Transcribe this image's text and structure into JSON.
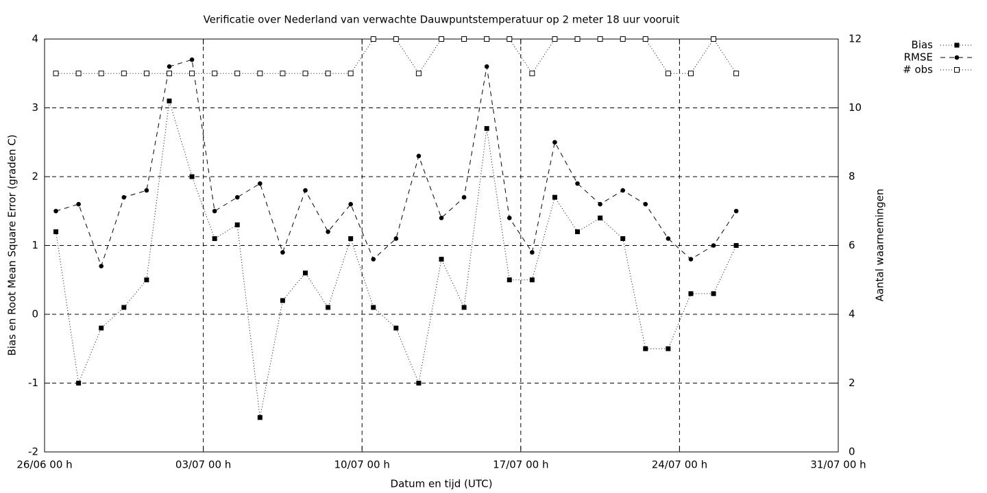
{
  "chart_data": {
    "type": "line",
    "title": "Verificatie over Nederland van verwachte Dauwpuntstemperatuur op 2 meter 18 uur vooruit",
    "xlabel": "Datum en tijd (UTC)",
    "ylabel": "Bias en Root Mean Square Error (graden C)",
    "y2label": "Aantal waarnemingen",
    "x": [
      0.5,
      1.5,
      2.5,
      3.5,
      4.5,
      5.5,
      6.5,
      7.5,
      8.5,
      9.5,
      10.5,
      11.5,
      12.5,
      13.5,
      14.5,
      15.5,
      16.5,
      17.5,
      18.5,
      19.5,
      20.5,
      21.5,
      22.5,
      23.5,
      24.5,
      25.5,
      26.5,
      27.5,
      28.5,
      29.5,
      30.5
    ],
    "xlim": [
      0,
      35
    ],
    "xticks": [
      {
        "value": 0,
        "label": "26/06 00 h"
      },
      {
        "value": 7,
        "label": "03/07 00 h"
      },
      {
        "value": 14,
        "label": "10/07 00 h"
      },
      {
        "value": 21,
        "label": "17/07 00 h"
      },
      {
        "value": 28,
        "label": "24/07 00 h"
      },
      {
        "value": 35,
        "label": "31/07 00 h"
      }
    ],
    "ylim": [
      -2,
      4
    ],
    "yticks": [
      -2,
      -1,
      0,
      1,
      2,
      3,
      4
    ],
    "y2lim": [
      0,
      12
    ],
    "y2ticks": [
      0,
      2,
      4,
      6,
      8,
      10,
      12
    ],
    "grid": true,
    "series": [
      {
        "name": "Bias",
        "color": "#000000",
        "marker": "square",
        "dash": "dotted",
        "values": [
          1.2,
          -1.0,
          -0.2,
          0.1,
          0.5,
          3.1,
          2.0,
          1.1,
          1.3,
          -1.5,
          0.2,
          0.6,
          0.1,
          1.1,
          0.1,
          -0.2,
          -1.0,
          0.8,
          0.1,
          2.7,
          0.5,
          0.5,
          1.7,
          1.2,
          1.4,
          1.1,
          -0.5,
          -0.5,
          0.3,
          0.3,
          1.0
        ]
      },
      {
        "name": "RMSE",
        "color": "#000000",
        "marker": "circle",
        "dash": "dashed",
        "values": [
          1.5,
          1.6,
          0.7,
          1.7,
          1.8,
          3.6,
          3.7,
          1.5,
          1.7,
          1.9,
          0.9,
          1.8,
          1.2,
          1.6,
          0.8,
          1.1,
          2.3,
          1.4,
          1.7,
          3.6,
          1.4,
          0.9,
          2.5,
          1.9,
          1.6,
          1.8,
          1.6,
          1.1,
          0.8,
          1.0,
          1.5
        ]
      },
      {
        "name": "# obs",
        "color": "#000000",
        "marker": "open-square",
        "dash": "dotted",
        "axis": "y2",
        "values": [
          11,
          11,
          11,
          11,
          11,
          11,
          11,
          11,
          11,
          11,
          11,
          11,
          11,
          11,
          12,
          12,
          11,
          12,
          12,
          12,
          12,
          11,
          12,
          12,
          12,
          12,
          12,
          11,
          11,
          12,
          11
        ]
      }
    ]
  }
}
